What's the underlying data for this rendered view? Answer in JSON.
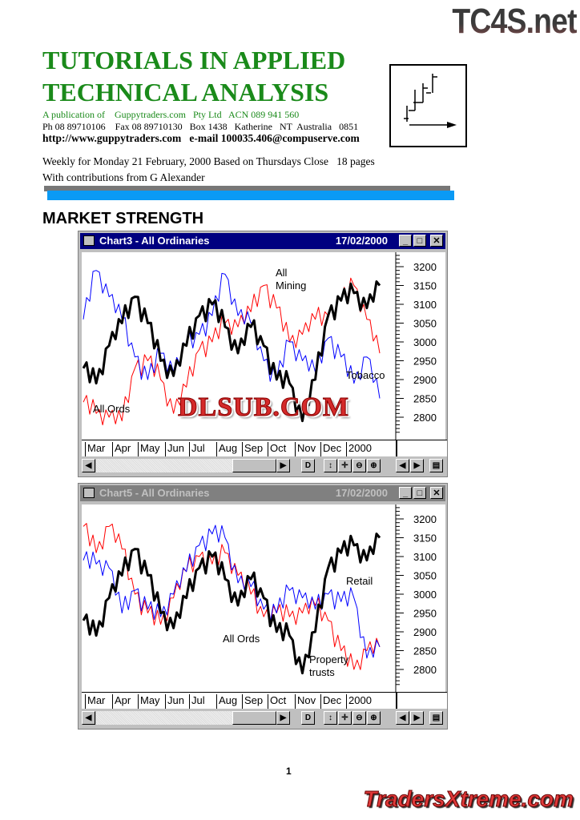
{
  "watermarks": {
    "top": "TC4S.net",
    "middle": "DLSUB.COM",
    "bottom": "TradersXtreme.com"
  },
  "header": {
    "title_line1": "TUTORIALS IN APPLIED",
    "title_line2": "TECHNICAL ANALYSIS",
    "publication": "A publication of    Guppytraders.com   Pty Ltd   ACN 089 941 560",
    "contact": "Ph 08 89710106    Fax 08 89710130   Box 1438   Katherine   NT  Australia   0851",
    "web": "http://www.guppytraders.com   e-mail 100035.406@compuserve.com",
    "issue": "Weekly for Monday 21 February, 2000 Based on Thursdays Close   18 pages",
    "contributions": "With contributions from G Alexander",
    "title_color": "#1a8a1a"
  },
  "section_title": "MARKET STRENGTH",
  "page_number": "1",
  "toolbar_buttons": [
    "scroll-left",
    "scroll-right",
    "D",
    "vertical-scale",
    "move",
    "zoom-out",
    "zoom-in",
    "prev",
    "next",
    "window"
  ],
  "chart_data": [
    {
      "type": "line",
      "window_title": "Chart3 - All Ordinaries",
      "window_active": true,
      "date": "17/02/2000",
      "x": [
        "1999-03-01",
        "1999-03-15",
        "1999-04-01",
        "1999-04-15",
        "1999-05-01",
        "1999-05-15",
        "1999-06-01",
        "1999-06-15",
        "1999-07-01",
        "1999-07-15",
        "1999-08-01",
        "1999-08-15",
        "1999-09-01",
        "1999-09-15",
        "1999-10-01",
        "1999-10-15",
        "1999-11-01",
        "1999-11-15",
        "1999-12-01",
        "1999-12-15",
        "2000-01-01",
        "2000-01-15",
        "2000-02-01",
        "2000-02-15"
      ],
      "x_tick_labels": [
        "Mar",
        "Apr",
        "May",
        "Jun",
        "Jul",
        "Aug",
        "Sep",
        "Oct",
        "Nov",
        "Dec",
        "2000"
      ],
      "y_tick_labels": [
        "3200",
        "3150",
        "3100",
        "3050",
        "3000",
        "2950",
        "2900",
        "2850",
        "2800"
      ],
      "ylim": [
        2760,
        3250
      ],
      "series": [
        {
          "name": "All Ords",
          "color": "#000000",
          "values": [
            2930,
            2890,
            2990,
            3050,
            3120,
            3050,
            2950,
            2910,
            2990,
            3070,
            3100,
            3040,
            2970,
            3040,
            2990,
            2900,
            2890,
            2790,
            2900,
            3070,
            3110,
            3130,
            3090,
            3150
          ]
        },
        {
          "name": "All Mining",
          "color": "#ff0000",
          "values": [
            2840,
            2810,
            2800,
            2790,
            2930,
            2950,
            2900,
            2810,
            2880,
            2980,
            3000,
            3050,
            3040,
            3080,
            3150,
            3090,
            3000,
            3020,
            3060,
            3070,
            3110,
            3150,
            3060,
            2970
          ]
        },
        {
          "name": "Tobacco",
          "color": "#0000ff",
          "values": [
            3060,
            3190,
            3120,
            3060,
            2960,
            2900,
            2970,
            2920,
            2990,
            3020,
            3070,
            3180,
            3070,
            3050,
            2950,
            2900,
            3000,
            2950,
            2920,
            3010,
            2960,
            2890,
            2960,
            2850
          ]
        }
      ],
      "annotations": [
        "All",
        "Mining",
        "All Ords",
        "Tobacco"
      ]
    },
    {
      "type": "line",
      "window_title": "Chart5 - All Ordinaries",
      "window_active": false,
      "date": "17/02/2000",
      "x": [
        "1999-03-01",
        "1999-03-15",
        "1999-04-01",
        "1999-04-15",
        "1999-05-01",
        "1999-05-15",
        "1999-06-01",
        "1999-06-15",
        "1999-07-01",
        "1999-07-15",
        "1999-08-01",
        "1999-08-15",
        "1999-09-01",
        "1999-09-15",
        "1999-10-01",
        "1999-10-15",
        "1999-11-01",
        "1999-11-15",
        "1999-12-01",
        "1999-12-15",
        "2000-01-01",
        "2000-01-15",
        "2000-02-01",
        "2000-02-15"
      ],
      "x_tick_labels": [
        "Mar",
        "Apr",
        "May",
        "Jun",
        "Jul",
        "Aug",
        "Sep",
        "Oct",
        "Nov",
        "Dec",
        "2000"
      ],
      "y_tick_labels": [
        "3200",
        "3150",
        "3100",
        "3050",
        "3000",
        "2950",
        "2900",
        "2850",
        "2800"
      ],
      "ylim": [
        2760,
        3250
      ],
      "series": [
        {
          "name": "All Ords",
          "color": "#000000",
          "values": [
            2930,
            2890,
            2990,
            3050,
            3120,
            3050,
            2950,
            2910,
            2990,
            3070,
            3100,
            3040,
            2970,
            3040,
            2990,
            2900,
            2890,
            2790,
            2900,
            3070,
            3110,
            3130,
            3090,
            3150
          ]
        },
        {
          "name": "Property trusts",
          "color": "#ff0000",
          "values": [
            3180,
            3110,
            3180,
            3120,
            3000,
            2950,
            2920,
            2990,
            3060,
            3100,
            3080,
            3110,
            3050,
            3000,
            2940,
            2950,
            2940,
            2950,
            2970,
            2930,
            2850,
            2800,
            2850,
            2860
          ]
        },
        {
          "name": "Retail",
          "color": "#0000ff",
          "values": [
            3090,
            3080,
            3070,
            2950,
            3010,
            2960,
            2940,
            3000,
            3060,
            3130,
            3160,
            3150,
            3030,
            3020,
            2960,
            2950,
            3010,
            2990,
            2960,
            3000,
            2980,
            2990,
            2830,
            2860
          ]
        }
      ],
      "annotations": [
        "Retail",
        "All Ords",
        "Property",
        "trusts"
      ]
    }
  ]
}
